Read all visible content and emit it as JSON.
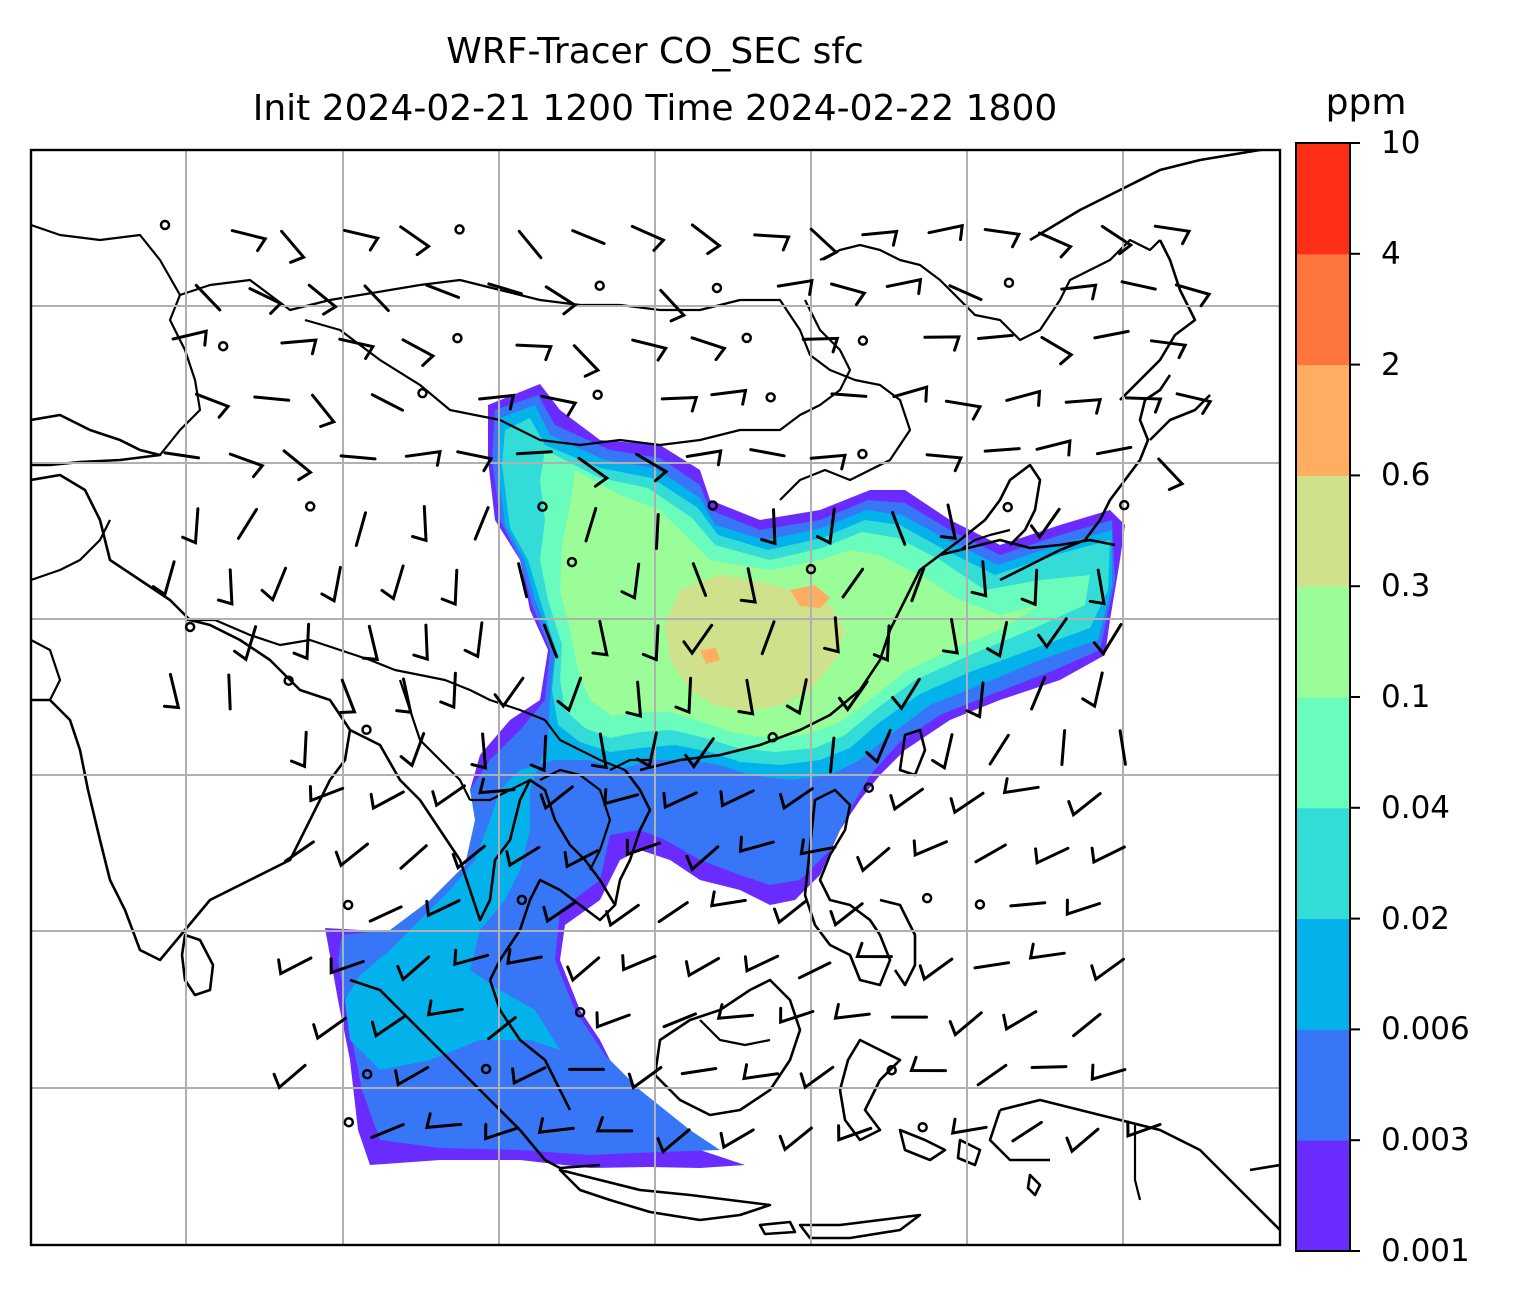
{
  "title_line1": "WRF-Tracer CO_SEC sfc",
  "title_line2": "Init 2024-02-21 1200 Time 2024-02-22 1800",
  "colorbar": {
    "units": "ppm",
    "levels": [
      "0.001",
      "0.003",
      "0.006",
      "0.02",
      "0.04",
      "0.1",
      "0.3",
      "0.6",
      "2",
      "4",
      "10"
    ],
    "colors": [
      "#6a2bff",
      "#3776f6",
      "#03b2ea",
      "#33dcd6",
      "#69fcbd",
      "#9afd97",
      "#cfe18a",
      "#ffae61",
      "#ff753d",
      "#ff2e17"
    ]
  },
  "map": {
    "gridlines": true,
    "layers": [
      "coastlines",
      "borders",
      "co-tracer-fill",
      "wind-barbs"
    ]
  }
}
